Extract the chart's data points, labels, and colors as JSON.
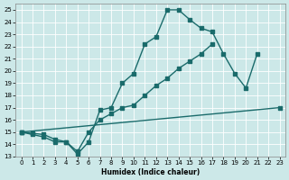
{
  "xlabel": "Humidex (Indice chaleur)",
  "xlim": [
    -0.5,
    23.5
  ],
  "ylim": [
    13,
    25.5
  ],
  "bg_color": "#cce8e8",
  "grid_color": "#ffffff",
  "line_color": "#1a6b6b",
  "line1_x": [
    0,
    1,
    2,
    3,
    4,
    5,
    6,
    7,
    8,
    9,
    10,
    11,
    12,
    13,
    14,
    15,
    16,
    17,
    18,
    19,
    20,
    21
  ],
  "line1_y": [
    15.0,
    14.8,
    14.6,
    14.2,
    14.2,
    13.2,
    14.2,
    16.8,
    17.0,
    19.0,
    19.8,
    22.2,
    22.8,
    25.0,
    25.0,
    24.2,
    23.5,
    23.2,
    21.4,
    19.8,
    18.6,
    21.4
  ],
  "line2_x": [
    0,
    1,
    2,
    3,
    4,
    5,
    6,
    7,
    8,
    9,
    10,
    11,
    12,
    13,
    14,
    15,
    16,
    17
  ],
  "line2_y": [
    15.0,
    14.9,
    14.8,
    14.4,
    14.2,
    13.4,
    15.0,
    16.0,
    16.5,
    17.0,
    17.2,
    18.0,
    18.8,
    19.4,
    20.2,
    20.8,
    21.4,
    22.2
  ],
  "line3_x": [
    0,
    23
  ],
  "line3_y": [
    15.0,
    17.0
  ]
}
